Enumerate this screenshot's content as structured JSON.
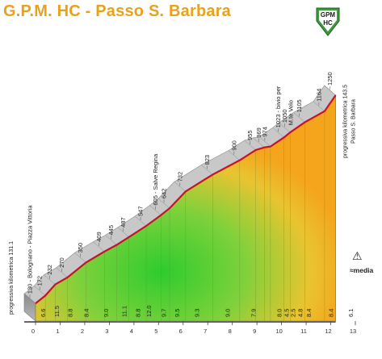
{
  "page": {
    "title": "G.P.M. HC - Passo S. Barbara"
  },
  "badge": {
    "line1": "GPM",
    "line2": "HC"
  },
  "brand": {
    "text": "≈media"
  },
  "colors": {
    "title": "#e8a21a",
    "side_face": "#9c9c9c",
    "top_face": "#c9c9c9",
    "road_line": "#c8102e",
    "gradient_green": "#33cc33",
    "gradient_orange": "#f4a51c",
    "badge_green": "#3d9a3d"
  },
  "chart_data": {
    "type": "area",
    "title": "G.P.M. HC - Passo S. Barbara",
    "xlabel": "",
    "ylabel": "",
    "xlim": [
      0,
      13
    ],
    "ylim": [
      100,
      1300
    ],
    "x_ticks": [
      "0",
      "1",
      "2",
      "3",
      "4",
      "5",
      "6",
      "7",
      "8",
      "9",
      "10",
      "11",
      "12",
      "13"
    ],
    "elevation_profile": [
      {
        "x": 0.0,
        "y": 130
      },
      {
        "x": 0.4,
        "y": 172
      },
      {
        "x": 0.8,
        "y": 232
      },
      {
        "x": 1.3,
        "y": 270
      },
      {
        "x": 2.05,
        "y": 350
      },
      {
        "x": 2.8,
        "y": 409
      },
      {
        "x": 3.3,
        "y": 445
      },
      {
        "x": 3.8,
        "y": 487
      },
      {
        "x": 4.5,
        "y": 547
      },
      {
        "x": 5.1,
        "y": 605
      },
      {
        "x": 5.45,
        "y": 642
      },
      {
        "x": 6.1,
        "y": 732
      },
      {
        "x": 7.2,
        "y": 823
      },
      {
        "x": 8.3,
        "y": 900
      },
      {
        "x": 8.95,
        "y": 955
      },
      {
        "x": 9.3,
        "y": 969
      },
      {
        "x": 9.55,
        "y": 974
      },
      {
        "x": 10.1,
        "y": 1023
      },
      {
        "x": 10.35,
        "y": 1050
      },
      {
        "x": 10.95,
        "y": 1105
      },
      {
        "x": 11.75,
        "y": 1164
      },
      {
        "x": 12.2,
        "y": 1250
      }
    ],
    "altitude_labels": [
      {
        "x": 0.0,
        "text": "130  -  Bolognano  -  Piazza Vittoria"
      },
      {
        "x": 0.4,
        "text": "172"
      },
      {
        "x": 0.8,
        "text": "232"
      },
      {
        "x": 1.3,
        "text": "270"
      },
      {
        "x": 2.05,
        "text": "350"
      },
      {
        "x": 2.8,
        "text": "409"
      },
      {
        "x": 3.3,
        "text": "445"
      },
      {
        "x": 3.8,
        "text": "487"
      },
      {
        "x": 4.5,
        "text": "547"
      },
      {
        "x": 5.1,
        "text": "605  -  Salve Regina"
      },
      {
        "x": 5.45,
        "text": "642"
      },
      {
        "x": 6.1,
        "text": "732"
      },
      {
        "x": 7.2,
        "text": "823"
      },
      {
        "x": 8.3,
        "text": "900"
      },
      {
        "x": 8.95,
        "text": "955"
      },
      {
        "x": 9.3,
        "text": "969"
      },
      {
        "x": 9.55,
        "text": "974"
      },
      {
        "x": 10.1,
        "text": "1023  -  bivio per"
      },
      {
        "x": 10.35,
        "text": "1050"
      },
      {
        "x": 10.95,
        "text": "1105"
      },
      {
        "x": 11.75,
        "text": "1164"
      },
      {
        "x": 12.2,
        "text": "1250"
      }
    ],
    "secondary_labels": [
      {
        "x": 10.3,
        "text": "M.te Velo"
      }
    ],
    "side_notes": [
      {
        "x": 0.0,
        "text": "progressiva kilometrica  131.1"
      },
      {
        "x": 12.2,
        "text": "progressiva kilometrica  143.5"
      },
      {
        "x": 12.2,
        "text": "Passo  S.  Barbara"
      }
    ],
    "gradients": [
      {
        "x": 0.3,
        "value": "6.6"
      },
      {
        "x": 0.85,
        "value": "11.5"
      },
      {
        "x": 1.4,
        "value": "8.8"
      },
      {
        "x": 2.05,
        "value": "8.4"
      },
      {
        "x": 2.85,
        "value": "9.0"
      },
      {
        "x": 3.6,
        "value": "11.1"
      },
      {
        "x": 4.15,
        "value": "8.8"
      },
      {
        "x": 4.6,
        "value": "12.0"
      },
      {
        "x": 5.2,
        "value": "9.7"
      },
      {
        "x": 5.75,
        "value": "9.5"
      },
      {
        "x": 6.55,
        "value": "9.3"
      },
      {
        "x": 7.8,
        "value": "9.0"
      },
      {
        "x": 8.85,
        "value": "7.9"
      },
      {
        "x": 9.9,
        "value": "8.0"
      },
      {
        "x": 10.2,
        "value": "4.5"
      },
      {
        "x": 10.45,
        "value": "2.5"
      },
      {
        "x": 10.75,
        "value": "4.8"
      },
      {
        "x": 11.1,
        "value": "8.4"
      },
      {
        "x": 12.0,
        "value": "8.4"
      },
      {
        "x": 12.8,
        "value": "6.1"
      }
    ]
  }
}
